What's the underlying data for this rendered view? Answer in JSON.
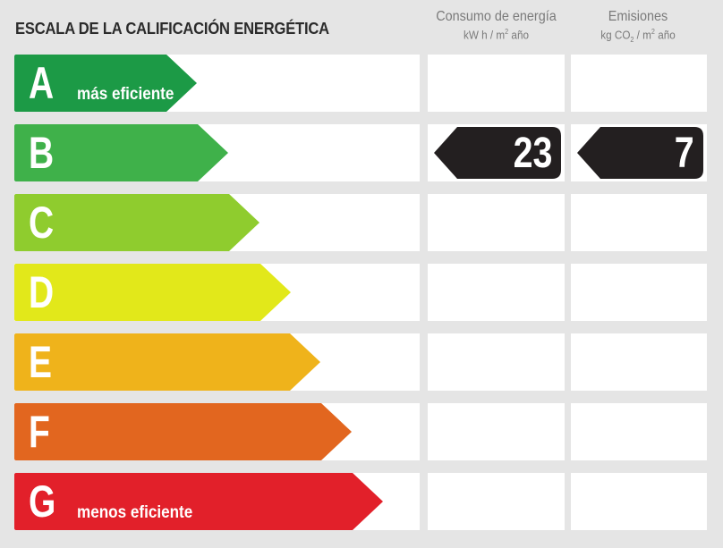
{
  "title": "ESCALA DE LA CALIFICACIÓN ENERGÉTICA",
  "columns": {
    "consumo": {
      "label": "Consumo de energía",
      "unit_prefix": "kW h / m",
      "unit_sup": "2",
      "unit_suffix": " año"
    },
    "emisiones": {
      "label": "Emisiones",
      "unit_prefix": "kg CO",
      "unit_sub": "2",
      "unit_mid": " / m",
      "unit_sup": "2",
      "unit_suffix": " año"
    }
  },
  "ratings": [
    {
      "letter": "A",
      "text": "más eficiente",
      "color": "#1c9a46"
    },
    {
      "letter": "B",
      "text": "",
      "color": "#3fb14a"
    },
    {
      "letter": "C",
      "text": "",
      "color": "#8fcc2e"
    },
    {
      "letter": "D",
      "text": "",
      "color": "#e2e81a"
    },
    {
      "letter": "E",
      "text": "",
      "color": "#efb31b"
    },
    {
      "letter": "F",
      "text": "",
      "color": "#e2661f"
    },
    {
      "letter": "G",
      "text": "menos eficiente",
      "color": "#e2202a"
    }
  ],
  "current": {
    "rating": "B",
    "consumo_value": "23",
    "emisiones_value": "7",
    "badge_color": "#231f20"
  }
}
